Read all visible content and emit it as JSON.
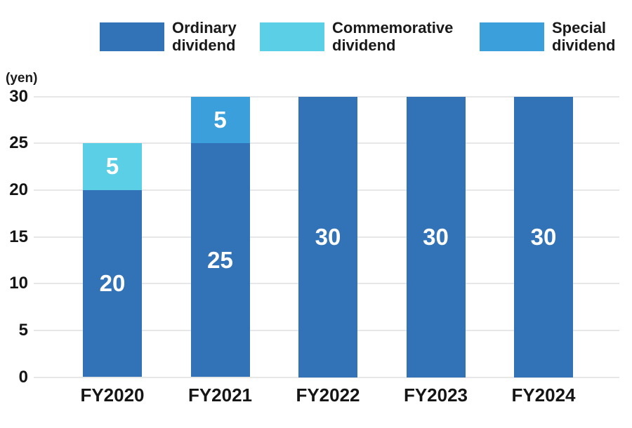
{
  "chart_data": {
    "type": "bar",
    "stacked": true,
    "categories": [
      "FY2020",
      "FY2021",
      "FY2022",
      "FY2023",
      "FY2024"
    ],
    "series": [
      {
        "name": "Ordinary dividend",
        "color": "#3273B8",
        "values": [
          20,
          25,
          30,
          30,
          30
        ]
      },
      {
        "name": "Commemorative dividend",
        "color": "#5BCFE6",
        "values": [
          5,
          0,
          0,
          0,
          0
        ]
      },
      {
        "name": "Special dividend",
        "color": "#3A9FDB",
        "values": [
          0,
          5,
          0,
          0,
          0
        ]
      }
    ],
    "title": "",
    "xlabel": "",
    "ylabel": "(yen)",
    "ylim": [
      0,
      30
    ],
    "ytick_step": 5,
    "grid": true,
    "legend_position": "top",
    "value_label_color": "#FFFFFF",
    "gridline_color": "#E7E7E7",
    "tick_label_color": "#151515"
  },
  "legend": {
    "items": [
      {
        "lines": [
          "Ordinary",
          "dividend"
        ],
        "color": "#3273B8"
      },
      {
        "lines": [
          "Commemorative",
          "dividend"
        ],
        "color": "#5BCFE6"
      },
      {
        "lines": [
          "Special",
          "dividend"
        ],
        "color": "#3A9FDB"
      }
    ]
  }
}
